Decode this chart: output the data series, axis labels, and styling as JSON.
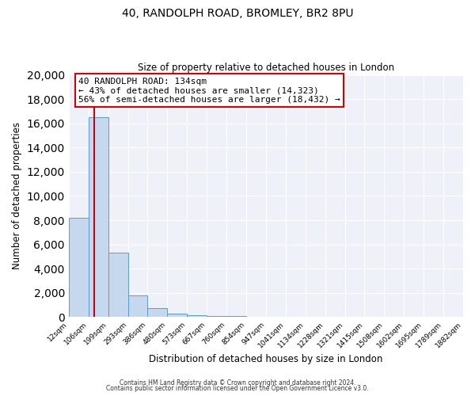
{
  "title1": "40, RANDOLPH ROAD, BROMLEY, BR2 8PU",
  "title2": "Size of property relative to detached houses in London",
  "xlabel": "Distribution of detached houses by size in London",
  "ylabel": "Number of detached properties",
  "bin_labels": [
    "12sqm",
    "106sqm",
    "199sqm",
    "293sqm",
    "386sqm",
    "480sqm",
    "573sqm",
    "667sqm",
    "760sqm",
    "854sqm",
    "947sqm",
    "1041sqm",
    "1134sqm",
    "1228sqm",
    "1321sqm",
    "1415sqm",
    "1508sqm",
    "1602sqm",
    "1695sqm",
    "1789sqm",
    "1882sqm"
  ],
  "bar_heights": [
    8200,
    16500,
    5300,
    1800,
    750,
    300,
    150,
    100,
    80,
    0,
    0,
    0,
    0,
    0,
    0,
    0,
    0,
    0,
    0,
    0
  ],
  "bar_color": "#c5d8ed",
  "bar_edge_color": "#5b9bd5",
  "property_value": 134,
  "bin_low": 106,
  "bin_high": 199,
  "bin_low_idx": 1,
  "annotation_title": "40 RANDOLPH ROAD: 134sqm",
  "annotation_line1": "← 43% of detached houses are smaller (14,323)",
  "annotation_line2": "56% of semi-detached houses are larger (18,432) →",
  "annotation_box_color": "#ffffff",
  "annotation_box_edge": "#cc0000",
  "red_line_color": "#cc0000",
  "ylim": [
    0,
    20000
  ],
  "yticks": [
    0,
    2000,
    4000,
    6000,
    8000,
    10000,
    12000,
    14000,
    16000,
    18000,
    20000
  ],
  "footer1": "Contains HM Land Registry data © Crown copyright and database right 2024.",
  "footer2": "Contains public sector information licensed under the Open Government Licence v3.0.",
  "bg_color": "#eef2f8",
  "grid_color": "#ffffff",
  "fig_bg": "#ffffff"
}
